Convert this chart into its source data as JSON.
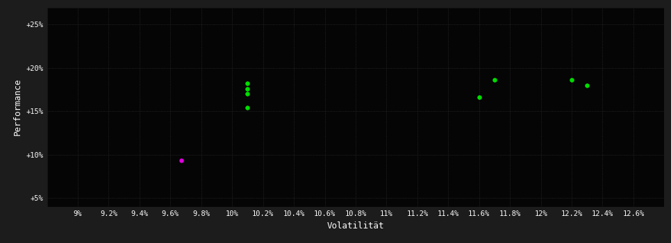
{
  "background_color": "#1c1c1c",
  "plot_bg_color": "#050505",
  "grid_color": "#2d2d2d",
  "text_color": "#ffffff",
  "xlabel": "Volatilität",
  "ylabel": "Performance",
  "xlim": [
    0.088,
    0.128
  ],
  "ylim": [
    0.04,
    0.27
  ],
  "xticks": [
    0.09,
    0.092,
    0.094,
    0.096,
    0.098,
    0.1,
    0.102,
    0.104,
    0.106,
    0.108,
    0.11,
    0.112,
    0.114,
    0.116,
    0.118,
    0.12,
    0.122,
    0.124,
    0.126
  ],
  "xtick_labels": [
    "9%",
    "9.2%",
    "9.4%",
    "9.6%",
    "9.8%",
    "10%",
    "10.2%",
    "10.4%",
    "10.6%",
    "10.8%",
    "11%",
    "11.2%",
    "11.4%",
    "11.6%",
    "11.8%",
    "12%",
    "12.2%",
    "12.4%",
    "12.6%"
  ],
  "yticks": [
    0.05,
    0.1,
    0.15,
    0.2,
    0.25
  ],
  "ytick_labels": [
    "+5%",
    "+10%",
    "+15%",
    "+20%",
    "+25%"
  ],
  "green_points": [
    [
      0.101,
      0.182
    ],
    [
      0.101,
      0.176
    ],
    [
      0.101,
      0.17
    ],
    [
      0.101,
      0.154
    ],
    [
      0.116,
      0.166
    ],
    [
      0.117,
      0.186
    ],
    [
      0.122,
      0.186
    ],
    [
      0.123,
      0.18
    ]
  ],
  "magenta_point": [
    0.0967,
    0.093
  ],
  "green_color": "#00dd00",
  "magenta_color": "#dd00dd",
  "point_size": 22
}
